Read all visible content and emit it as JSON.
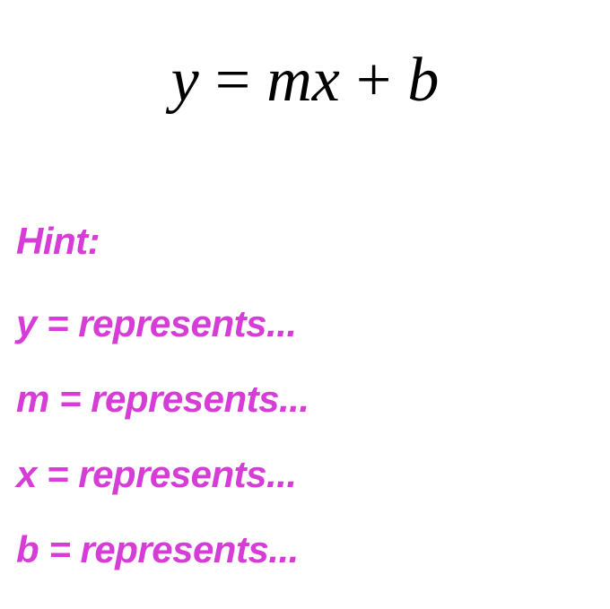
{
  "equation": {
    "text": "y = mx + b",
    "color": "#000000",
    "fontsize": 70,
    "font_family": "Georgia, \"Times New Roman\", serif",
    "font_style": "italic"
  },
  "hints": {
    "title": {
      "text": "Hint:",
      "color": "#d63cd6",
      "fontsize": 42,
      "font_weight": 700,
      "font_style": "italic"
    },
    "items": [
      {
        "text": "y = represents...",
        "color": "#d63cd6",
        "fontsize": 42
      },
      {
        "text": "m = represents...",
        "color": "#d63cd6",
        "fontsize": 42
      },
      {
        "text": "x = represents...",
        "color": "#d63cd6",
        "fontsize": 42
      },
      {
        "text": "b = represents...",
        "color": "#d63cd6",
        "fontsize": 42
      }
    ]
  },
  "background_color": "#ffffff"
}
